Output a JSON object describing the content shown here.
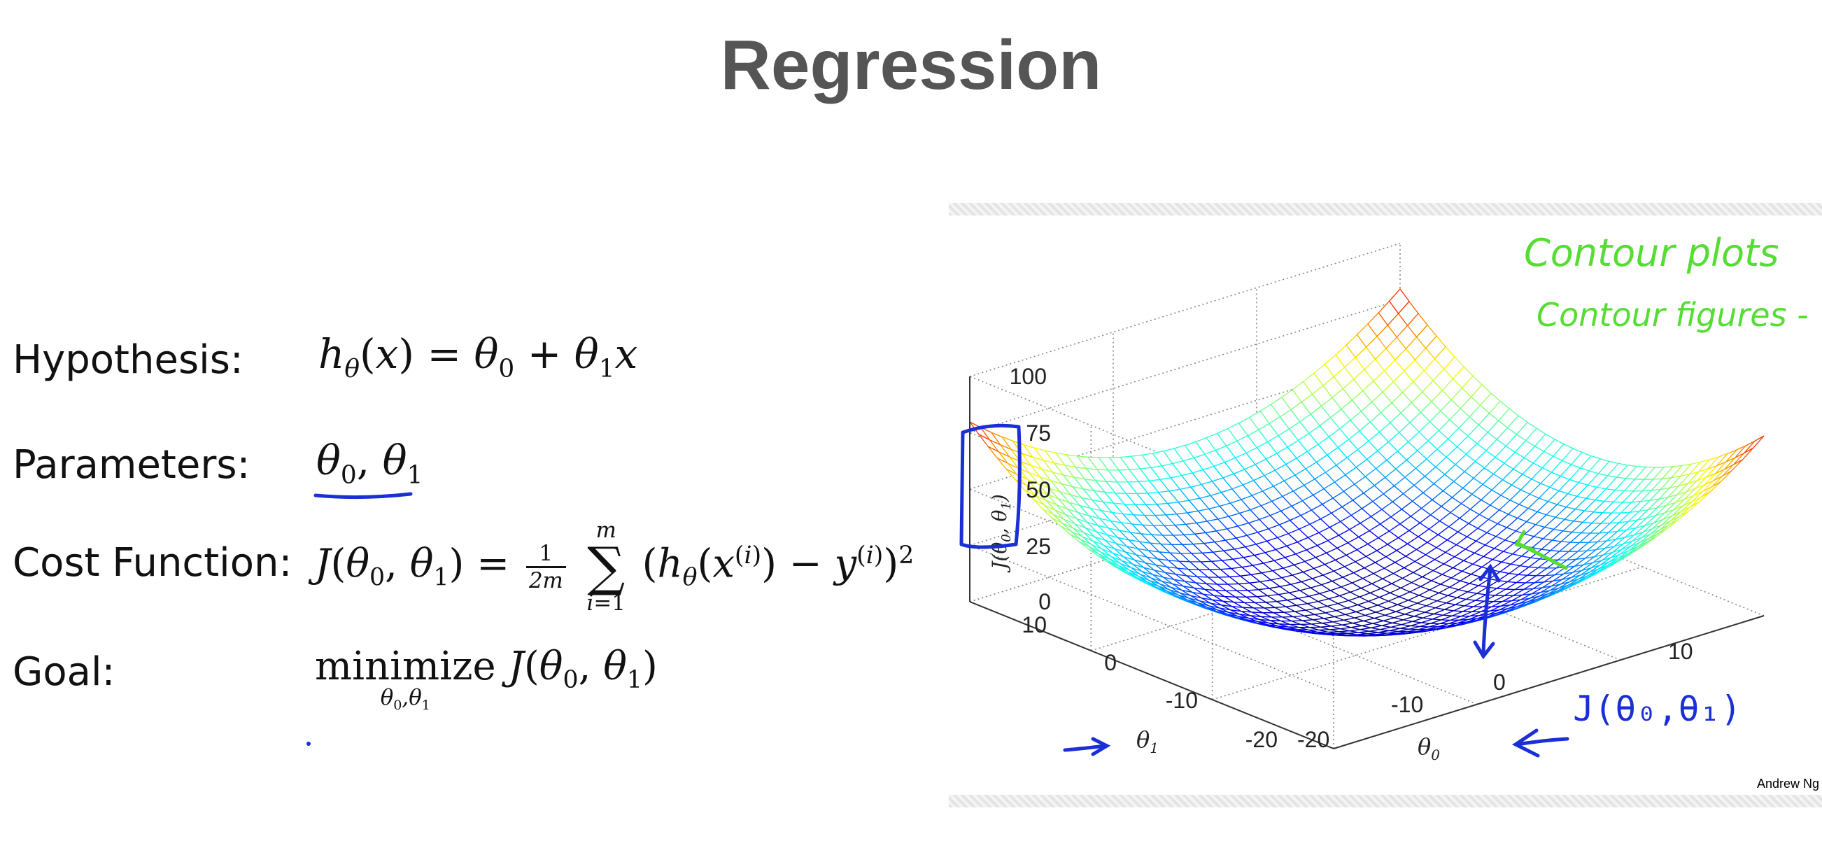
{
  "title": "Regression",
  "rows": {
    "hypothesis": {
      "label": "Hypothesis:"
    },
    "parameters": {
      "label": "Parameters:"
    },
    "cost": {
      "label": "Cost Function:"
    },
    "goal": {
      "label": "Goal:",
      "minimize_word": "minimize"
    }
  },
  "figure": {
    "credit": "Andrew Ng",
    "z_ticks": [
      "100",
      "75",
      "50",
      "25",
      "0"
    ],
    "theta1_ticks": [
      "10",
      "0",
      "-10",
      "-20"
    ],
    "theta0_ticks": [
      "10",
      "0",
      "-10",
      "-20"
    ],
    "z_axis_label": "J(θ0, θ1)",
    "x_axis_label": "θ1",
    "y_axis_label": "θ0",
    "annotations": {
      "line1": "Contour plots",
      "line2": "Contour figures -",
      "j_label": "J(θ₀,θ₁)",
      "green": "#55dd33",
      "blue": "#1a2fd6"
    }
  }
}
